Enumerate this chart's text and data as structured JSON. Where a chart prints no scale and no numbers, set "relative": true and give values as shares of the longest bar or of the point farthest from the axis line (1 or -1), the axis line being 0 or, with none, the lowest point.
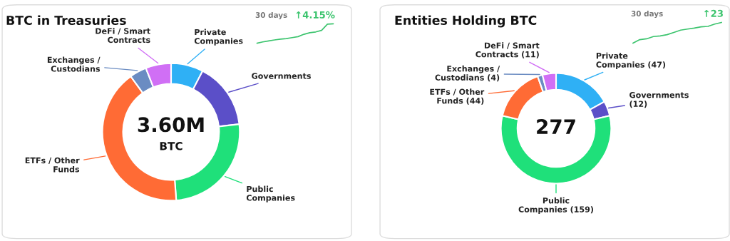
{
  "chart_data": [
    {
      "type": "donut",
      "title": "BTC in Treasuries",
      "annotations": [
        "3.60M",
        "BTC"
      ],
      "categories": [
        "Private Companies",
        "Governments",
        "Public Companies",
        "ETFs / Other Funds",
        "Exchanges / Custodians",
        "DeFi / Smart Contracts"
      ],
      "values": [
        7.6,
        15.6,
        25.6,
        41.2,
        4.0,
        6.0
      ],
      "colors": [
        "#2fb0f5",
        "#5b4fc8",
        "#1fe07a",
        "#ff6b35",
        "#6b8cc2",
        "#d06ff5"
      ],
      "legend": false
    },
    {
      "type": "line",
      "title": "30 days",
      "subtitle": "↑4.15%",
      "relative": true,
      "categories": [
        null,
        null,
        null,
        null,
        null,
        null,
        null,
        null,
        null,
        null,
        null,
        null,
        null,
        null
      ],
      "series": [
        {
          "color": "#3cc46e",
          "values": [
            0,
            0.07,
            0.12,
            0.17,
            0.21,
            0.24,
            0.29,
            0.34,
            0.46,
            0.54,
            0.58,
            0.66,
            0.98,
            1.0
          ]
        }
      ],
      "legend": false
    },
    {
      "type": "donut",
      "title": "Entities Holding BTC",
      "annotations": [
        "277"
      ],
      "value_labels": [
        "(47)",
        "(12)",
        "(159)",
        "(44)",
        "(4)",
        "(11)"
      ],
      "categories": [
        "Private Companies",
        "Governments",
        "Public Companies",
        "ETFs / Other Funds",
        "Exchanges / Custodians",
        "DeFi / Smart Contracts"
      ],
      "values": [
        47,
        12,
        159,
        44,
        4,
        11
      ],
      "colors": [
        "#2fb0f5",
        "#5b4fc8",
        "#1fe07a",
        "#ff6b35",
        "#6b8cc2",
        "#d06ff5"
      ],
      "legend": false
    },
    {
      "type": "line",
      "title": "30 days",
      "subtitle": "↑23",
      "relative": true,
      "categories": [
        null,
        null,
        null,
        null,
        null,
        null,
        null,
        null,
        null,
        null,
        null,
        null,
        null,
        null
      ],
      "series": [
        {
          "color": "#3cc46e",
          "values": [
            0,
            0.17,
            0.21,
            0.32,
            0.35,
            0.41,
            0.52,
            0.63,
            0.68,
            0.73,
            0.79,
            0.81,
            0.92,
            1.0
          ]
        }
      ],
      "legend": false
    }
  ]
}
